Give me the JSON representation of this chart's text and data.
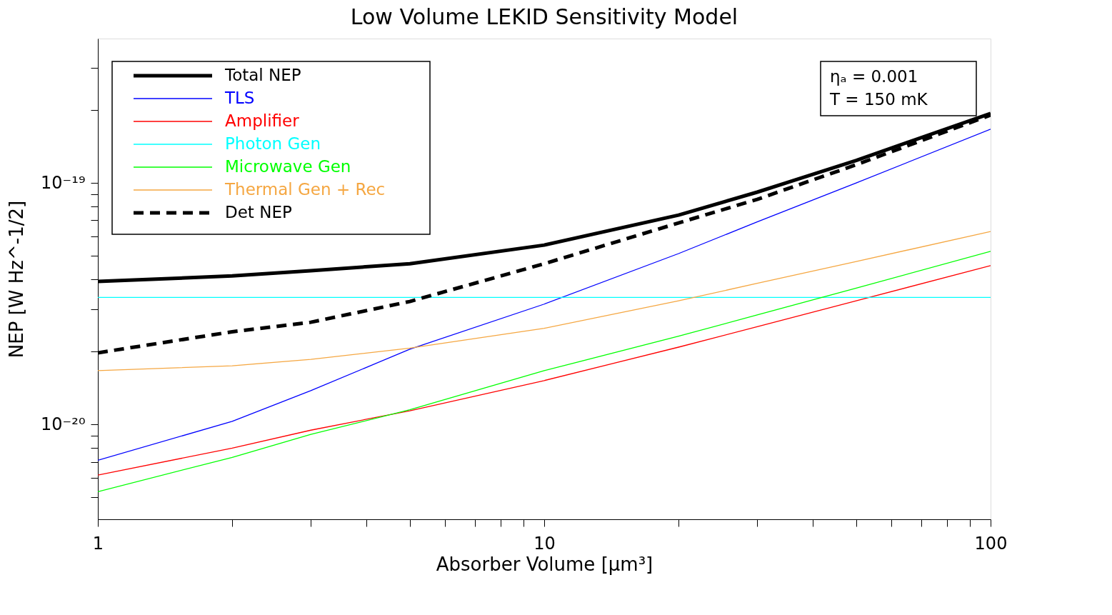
{
  "chart_data": {
    "type": "line",
    "title": "Low Volume LEKID Sensitivity Model",
    "xlabel": "Absorber Volume [μm³]",
    "ylabel": "NEP [W Hz^-1/2]",
    "x": [
      1,
      2,
      3,
      5,
      10,
      20,
      30,
      50,
      100
    ],
    "series": [
      {
        "name": "Total NEP",
        "color": "#000000",
        "values": [
          3.91e-20,
          4.12e-20,
          4.33e-20,
          4.63e-20,
          5.53e-20,
          7.36e-20,
          9.16e-20,
          1.24e-19,
          1.94e-19
        ]
      },
      {
        "name": "TLS",
        "color": "#0000ff",
        "values": [
          7.11e-21,
          1.03e-20,
          1.38e-20,
          2.05e-20,
          3.15e-20,
          5.1e-20,
          6.9e-20,
          1e-19,
          1.67e-19
        ]
      },
      {
        "name": "Amplifier",
        "color": "#ff0000",
        "values": [
          6.17e-21,
          7.98e-21,
          9.47e-21,
          1.14e-20,
          1.52e-20,
          2.09e-20,
          2.54e-20,
          3.25e-20,
          4.55e-20
        ]
      },
      {
        "name": "Photon Gen",
        "color": "#00ffff",
        "values": [
          3.36e-20,
          3.36e-20,
          3.36e-20,
          3.36e-20,
          3.36e-20,
          3.36e-20,
          3.36e-20,
          3.36e-20,
          3.36e-20
        ]
      },
      {
        "name": "Microwave Gen",
        "color": "#00ff00",
        "values": [
          5.27e-21,
          7.31e-21,
          9.1e-21,
          1.15e-20,
          1.67e-20,
          2.32e-20,
          2.84e-20,
          3.67e-20,
          5.21e-20
        ]
      },
      {
        "name": "Thermal Gen + Rec",
        "color": "#f5a742",
        "values": [
          1.67e-20,
          1.75e-20,
          1.86e-20,
          2.07e-20,
          2.5e-20,
          3.25e-20,
          3.84e-20,
          4.73e-20,
          6.29e-20
        ]
      },
      {
        "name": "Det NEP",
        "color": "#000000",
        "line_style": "dashed",
        "values": [
          1.98e-20,
          2.42e-20,
          2.65e-20,
          3.23e-20,
          4.63e-20,
          6.83e-20,
          8.55e-20,
          1.19e-19,
          1.91e-19
        ]
      }
    ],
    "log": "xy",
    "xlim": [
      1,
      100
    ],
    "ylim": [
      4.05e-21,
      3.96e-19
    ],
    "xticks": [
      1,
      {
        "value": 2,
        "label": null
      },
      {
        "value": 3,
        "label": null
      },
      {
        "value": 4,
        "label": null
      },
      {
        "value": 5,
        "label": null
      },
      {
        "value": 6,
        "label": null
      },
      {
        "value": 7,
        "label": null
      },
      {
        "value": 8,
        "label": null
      },
      {
        "value": 9,
        "label": null
      },
      10,
      {
        "value": 20,
        "label": null
      },
      {
        "value": 30,
        "label": null
      },
      {
        "value": 40,
        "label": null
      },
      {
        "value": 50,
        "label": null
      },
      {
        "value": 60,
        "label": null
      },
      {
        "value": 70,
        "label": null
      },
      {
        "value": 80,
        "label": null
      },
      {
        "value": 90,
        "label": null
      },
      100
    ],
    "yticks": [
      {
        "value": 5e-21,
        "label": null
      },
      {
        "value": 6e-21,
        "label": null
      },
      {
        "value": 7e-21,
        "label": null
      },
      {
        "value": 8e-21,
        "label": null
      },
      {
        "value": 9e-21,
        "label": null
      },
      {
        "value": 1e-20,
        "label": "10⁻²⁰"
      },
      {
        "value": 2e-20,
        "label": null
      },
      {
        "value": 3e-20,
        "label": null
      },
      {
        "value": 4e-20,
        "label": null
      },
      {
        "value": 5e-20,
        "label": null
      },
      {
        "value": 6e-20,
        "label": null
      },
      {
        "value": 7e-20,
        "label": null
      },
      {
        "value": 8e-20,
        "label": null
      },
      {
        "value": 9e-20,
        "label": null
      },
      {
        "value": 1e-19,
        "label": "10⁻¹⁹"
      },
      {
        "value": 2e-19,
        "label": null
      },
      {
        "value": 3e-19,
        "label": null
      }
    ],
    "annotations": [
      "ηₐ = 0.001",
      "T = 150 mK"
    ],
    "grid": false,
    "legend": "top left",
    "line_style": "solid"
  }
}
